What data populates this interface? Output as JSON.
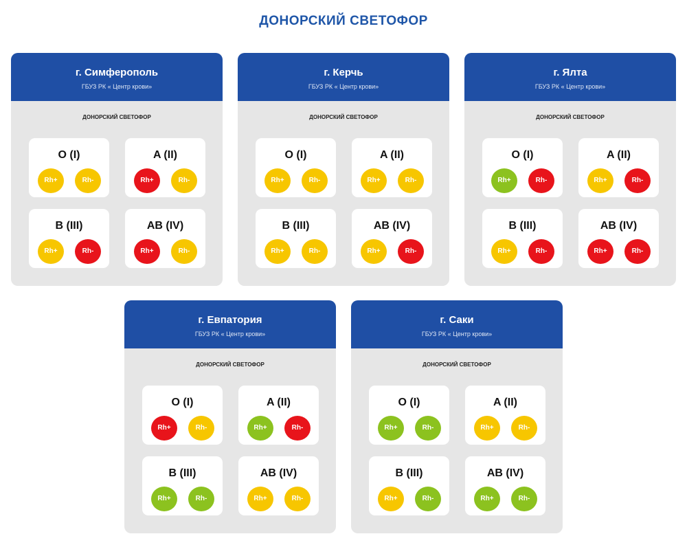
{
  "title": "ДОНОРСКИЙ СВЕТОФОР",
  "cards": [
    {
      "city": "г. Симферополь",
      "org": "ГБУЗ РК « Центр крови»",
      "subtitle": "ДОНОРСКИЙ СВЕТОФОР",
      "groups": [
        {
          "name": "O (I)",
          "rh": [
            {
              "label": "Rh+",
              "color": "#f7c600"
            },
            {
              "label": "Rh-",
              "color": "#f7c600"
            }
          ]
        },
        {
          "name": "A (II)",
          "rh": [
            {
              "label": "Rh+",
              "color": "#e8141b"
            },
            {
              "label": "Rh-",
              "color": "#f7c600"
            }
          ]
        },
        {
          "name": "B (III)",
          "rh": [
            {
              "label": "Rh+",
              "color": "#f7c600"
            },
            {
              "label": "Rh-",
              "color": "#e8141b"
            }
          ]
        },
        {
          "name": "AB (IV)",
          "rh": [
            {
              "label": "Rh+",
              "color": "#e8141b"
            },
            {
              "label": "Rh-",
              "color": "#f7c600"
            }
          ]
        }
      ]
    },
    {
      "city": "г. Керчь",
      "org": "ГБУЗ РК « Центр крови»",
      "subtitle": "ДОНОРСКИЙ СВЕТОФОР",
      "groups": [
        {
          "name": "O (I)",
          "rh": [
            {
              "label": "Rh+",
              "color": "#f7c600"
            },
            {
              "label": "Rh-",
              "color": "#f7c600"
            }
          ]
        },
        {
          "name": "A (II)",
          "rh": [
            {
              "label": "Rh+",
              "color": "#f7c600"
            },
            {
              "label": "Rh-",
              "color": "#f7c600"
            }
          ]
        },
        {
          "name": "B (III)",
          "rh": [
            {
              "label": "Rh+",
              "color": "#f7c600"
            },
            {
              "label": "Rh-",
              "color": "#f7c600"
            }
          ]
        },
        {
          "name": "AB (IV)",
          "rh": [
            {
              "label": "Rh+",
              "color": "#f7c600"
            },
            {
              "label": "Rh-",
              "color": "#e8141b"
            }
          ]
        }
      ]
    },
    {
      "city": "г. Ялта",
      "org": "ГБУЗ РК « Центр крови»",
      "subtitle": "ДОНОРСКИЙ СВЕТОФОР",
      "groups": [
        {
          "name": "O (I)",
          "rh": [
            {
              "label": "Rh+",
              "color": "#8cc21f"
            },
            {
              "label": "Rh-",
              "color": "#e8141b"
            }
          ]
        },
        {
          "name": "A (II)",
          "rh": [
            {
              "label": "Rh+",
              "color": "#f7c600"
            },
            {
              "label": "Rh-",
              "color": "#e8141b"
            }
          ]
        },
        {
          "name": "B (III)",
          "rh": [
            {
              "label": "Rh+",
              "color": "#f7c600"
            },
            {
              "label": "Rh-",
              "color": "#e8141b"
            }
          ]
        },
        {
          "name": "AB (IV)",
          "rh": [
            {
              "label": "Rh+",
              "color": "#e8141b"
            },
            {
              "label": "Rh-",
              "color": "#e8141b"
            }
          ]
        }
      ]
    },
    {
      "city": "г. Евпатория",
      "org": "ГБУЗ РК « Центр крови»",
      "subtitle": "ДОНОРСКИЙ СВЕТОФОР",
      "groups": [
        {
          "name": "O (I)",
          "rh": [
            {
              "label": "Rh+",
              "color": "#e8141b"
            },
            {
              "label": "Rh-",
              "color": "#f7c600"
            }
          ]
        },
        {
          "name": "A (II)",
          "rh": [
            {
              "label": "Rh+",
              "color": "#8cc21f"
            },
            {
              "label": "Rh-",
              "color": "#e8141b"
            }
          ]
        },
        {
          "name": "B (III)",
          "rh": [
            {
              "label": "Rh+",
              "color": "#8cc21f"
            },
            {
              "label": "Rh-",
              "color": "#8cc21f"
            }
          ]
        },
        {
          "name": "AB (IV)",
          "rh": [
            {
              "label": "Rh+",
              "color": "#f7c600"
            },
            {
              "label": "Rh-",
              "color": "#f7c600"
            }
          ]
        }
      ]
    },
    {
      "city": "г. Саки",
      "org": "ГБУЗ РК « Центр крови»",
      "subtitle": "ДОНОРСКИЙ СВЕТОФОР",
      "groups": [
        {
          "name": "O (I)",
          "rh": [
            {
              "label": "Rh+",
              "color": "#8cc21f"
            },
            {
              "label": "Rh-",
              "color": "#8cc21f"
            }
          ]
        },
        {
          "name": "A (II)",
          "rh": [
            {
              "label": "Rh+",
              "color": "#f7c600"
            },
            {
              "label": "Rh-",
              "color": "#f7c600"
            }
          ]
        },
        {
          "name": "B (III)",
          "rh": [
            {
              "label": "Rh+",
              "color": "#f7c600"
            },
            {
              "label": "Rh-",
              "color": "#8cc21f"
            }
          ]
        },
        {
          "name": "AB (IV)",
          "rh": [
            {
              "label": "Rh+",
              "color": "#8cc21f"
            },
            {
              "label": "Rh-",
              "color": "#8cc21f"
            }
          ]
        }
      ]
    }
  ]
}
